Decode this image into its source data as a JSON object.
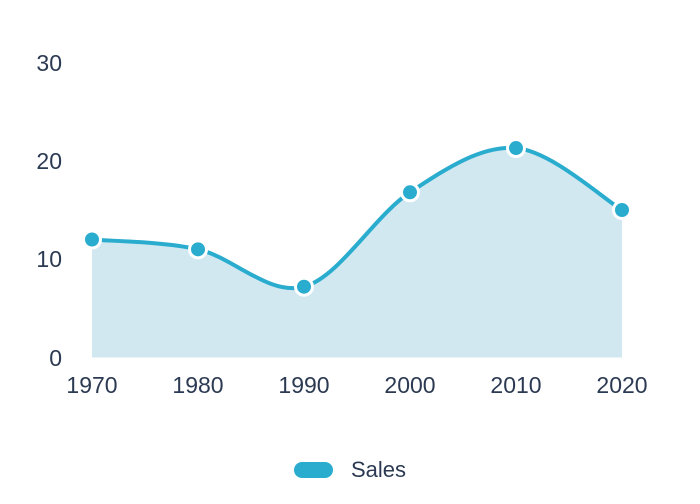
{
  "chart_data": {
    "type": "area",
    "title": "",
    "xlabel": "",
    "ylabel": "",
    "categories": [
      "1970",
      "1980",
      "1990",
      "2000",
      "2010",
      "2020"
    ],
    "series": [
      {
        "name": "Sales",
        "values": [
          12,
          11,
          7.2,
          16.8,
          21.3,
          15
        ]
      }
    ],
    "ylim": [
      0,
      30
    ],
    "yticks": [
      0,
      10,
      20,
      30
    ],
    "grid": false,
    "smooth": true,
    "legend_position": "bottom"
  },
  "legend": {
    "items": [
      {
        "label": "Sales",
        "color": "#2aacce"
      }
    ]
  },
  "colors": {
    "line": "#2aacce",
    "point_fill": "#2aacce",
    "point_ring": "#ffffff",
    "area_fill": "#d2e8f1",
    "axis_text": "#2b3a52",
    "background": "#ffffff"
  }
}
